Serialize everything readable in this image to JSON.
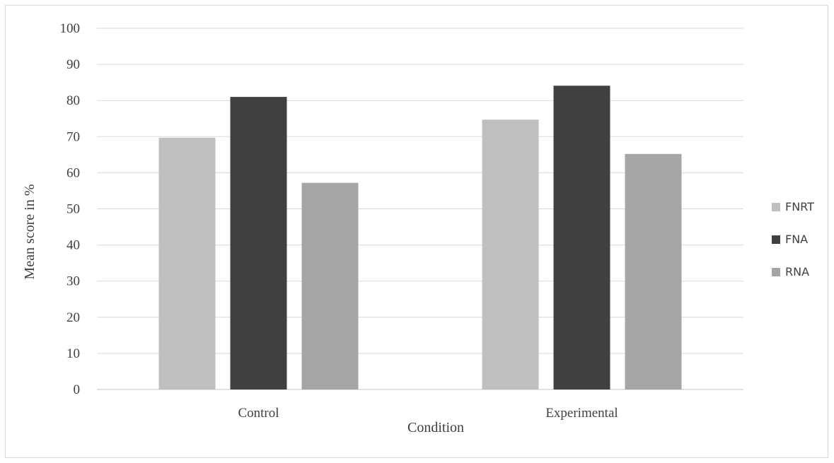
{
  "chart_data": {
    "type": "bar",
    "title": "",
    "xlabel": "Condition",
    "ylabel": "Mean score in %",
    "categories": [
      "Control",
      "Experimental"
    ],
    "series": [
      {
        "name": "FNRT",
        "values": [
          69.7,
          74.7
        ],
        "color": "#bfbfbf"
      },
      {
        "name": "FNA",
        "values": [
          81.0,
          84.1
        ],
        "color": "#404040"
      },
      {
        "name": "RNA",
        "values": [
          57.2,
          65.2
        ],
        "color": "#a5a5a5"
      }
    ],
    "ylim": [
      0,
      100
    ],
    "yticks": [
      "0",
      "10",
      "20",
      "30",
      "40",
      "50",
      "60",
      "70",
      "80",
      "90",
      "100"
    ],
    "grid": true,
    "legend_position": "right",
    "gridline_color": "#d9d9d9"
  }
}
